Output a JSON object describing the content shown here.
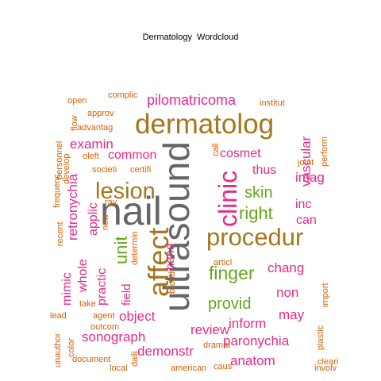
{
  "title": "Dermatology  Wordcloud",
  "colors": {
    "pink": "#e7298a",
    "gold": "#a6761d",
    "green": "#66a61e",
    "gray": "#666666",
    "orange": "#d95f02"
  },
  "words": [
    {
      "text": "ultrasound",
      "color": "gray"
    },
    {
      "text": "nail",
      "color": "gray"
    },
    {
      "text": "dermatolog",
      "color": "gold"
    },
    {
      "text": "procedur",
      "color": "gold"
    },
    {
      "text": "affect",
      "color": "gold"
    },
    {
      "text": "lesion",
      "color": "gold"
    },
    {
      "text": "clinic",
      "color": "pink"
    },
    {
      "text": "pilomatricoma",
      "color": "pink"
    },
    {
      "text": "finger",
      "color": "green"
    },
    {
      "text": "right",
      "color": "green"
    },
    {
      "text": "provid",
      "color": "green"
    },
    {
      "text": "skin",
      "color": "green"
    },
    {
      "text": "unit",
      "color": "green"
    },
    {
      "text": "examin",
      "color": "pink"
    },
    {
      "text": "retronychia",
      "color": "pink"
    },
    {
      "text": "cosmet",
      "color": "pink"
    },
    {
      "text": "vascular",
      "color": "pink"
    },
    {
      "text": "common",
      "color": "pink"
    },
    {
      "text": "thus",
      "color": "pink"
    },
    {
      "text": "imag",
      "color": "pink"
    },
    {
      "text": "inc",
      "color": "pink"
    },
    {
      "text": "can",
      "color": "pink"
    },
    {
      "text": "applic",
      "color": "pink"
    },
    {
      "text": "whole",
      "color": "pink"
    },
    {
      "text": "mimic",
      "color": "pink"
    },
    {
      "text": "practic",
      "color": "pink"
    },
    {
      "text": "field",
      "color": "pink"
    },
    {
      "text": "hand",
      "color": "pink"
    },
    {
      "text": "chang",
      "color": "pink"
    },
    {
      "text": "non",
      "color": "pink"
    },
    {
      "text": "may",
      "color": "pink"
    },
    {
      "text": "object",
      "color": "pink"
    },
    {
      "text": "sonograph",
      "color": "pink"
    },
    {
      "text": "review",
      "color": "pink"
    },
    {
      "text": "inform",
      "color": "pink"
    },
    {
      "text": "paronychia",
      "color": "pink"
    },
    {
      "text": "demonstr",
      "color": "pink"
    },
    {
      "text": "anatom",
      "color": "pink"
    },
    {
      "text": "open",
      "color": "orange"
    },
    {
      "text": "complic",
      "color": "orange"
    },
    {
      "text": "institut",
      "color": "orange"
    },
    {
      "text": "approv",
      "color": "orange"
    },
    {
      "text": "advantag",
      "color": "orange"
    },
    {
      "text": "flow",
      "color": "orange"
    },
    {
      "text": "personnel",
      "color": "orange"
    },
    {
      "text": "frequenc",
      "color": "orange"
    },
    {
      "text": "develop",
      "color": "orange"
    },
    {
      "text": "oleft",
      "color": "orange"
    },
    {
      "text": "societi",
      "color": "orange"
    },
    {
      "text": "certifi",
      "color": "orange"
    },
    {
      "text": "call",
      "color": "orange"
    },
    {
      "text": "perform",
      "color": "orange"
    },
    {
      "text": "joint",
      "color": "orange"
    },
    {
      "text": "new",
      "color": "orange"
    },
    {
      "text": "ray",
      "color": "orange"
    },
    {
      "text": "recent",
      "color": "orange"
    },
    {
      "text": "determin",
      "color": "orange"
    },
    {
      "text": "broad",
      "color": "orange"
    },
    {
      "text": "articl",
      "color": "orange"
    },
    {
      "text": "dramat",
      "color": "orange"
    },
    {
      "text": "import",
      "color": "orange"
    },
    {
      "text": "take",
      "color": "orange"
    },
    {
      "text": "lead",
      "color": "orange"
    },
    {
      "text": "agent",
      "color": "orange"
    },
    {
      "text": "outcom",
      "color": "orange"
    },
    {
      "text": "unauthor",
      "color": "orange"
    },
    {
      "text": "color",
      "color": "orange"
    },
    {
      "text": "document",
      "color": "orange"
    },
    {
      "text": "daili",
      "color": "orange"
    },
    {
      "text": "local",
      "color": "orange"
    },
    {
      "text": "american",
      "color": "orange"
    },
    {
      "text": "caus",
      "color": "orange"
    },
    {
      "text": "plastic",
      "color": "orange"
    },
    {
      "text": "cleari",
      "color": "orange"
    },
    {
      "text": "involv",
      "color": "orange"
    }
  ]
}
